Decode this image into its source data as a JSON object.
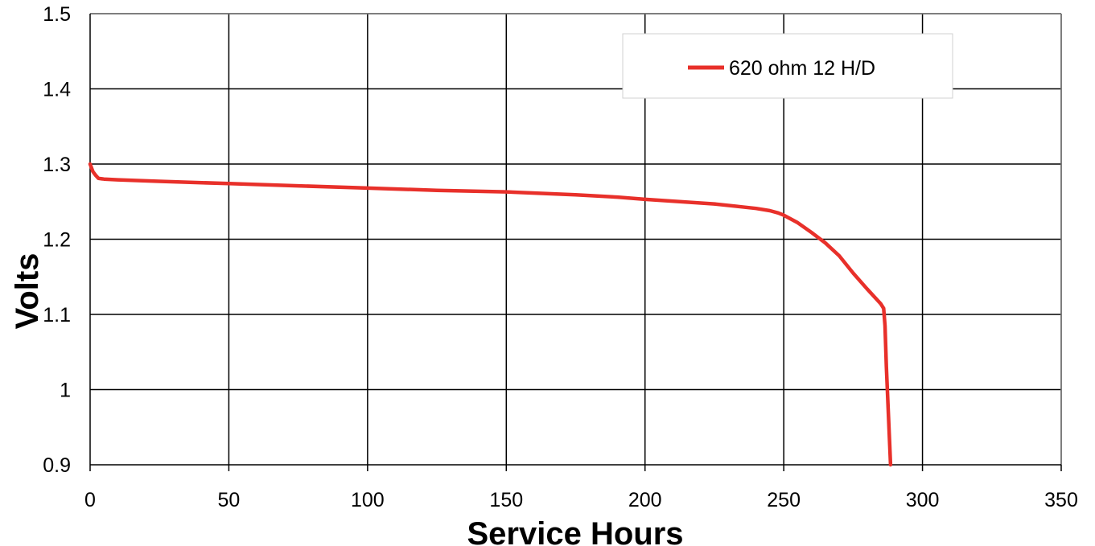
{
  "chart_data": {
    "type": "line",
    "title": "",
    "xlabel": "Service Hours",
    "ylabel": "Volts",
    "xlim": [
      0,
      350
    ],
    "ylim": [
      0.9,
      1.5
    ],
    "xticks": [
      0,
      50,
      100,
      150,
      200,
      250,
      300,
      350
    ],
    "yticks": [
      0.9,
      1,
      1.1,
      1.2,
      1.3,
      1.4,
      1.5
    ],
    "xtick_labels": [
      "0",
      "50",
      "100",
      "150",
      "200",
      "250",
      "300",
      "350"
    ],
    "ytick_labels": [
      "0.9",
      "1",
      "1.1",
      "1.2",
      "1.3",
      "1.4",
      "1.5"
    ],
    "grid": true,
    "legend_position": "top-right",
    "series": [
      {
        "name": "620 ohm 12 H/D",
        "color": "#e8302a",
        "x": [
          0,
          1,
          2,
          3,
          5,
          10,
          25,
          50,
          75,
          100,
          125,
          150,
          175,
          190,
          200,
          225,
          235,
          240,
          245,
          248,
          250,
          255,
          260,
          265,
          270,
          275,
          280,
          285,
          286,
          286.5,
          287,
          288.5
        ],
        "y": [
          1.3,
          1.29,
          1.285,
          1.281,
          1.28,
          1.279,
          1.277,
          1.274,
          1.271,
          1.268,
          1.265,
          1.263,
          1.259,
          1.256,
          1.253,
          1.247,
          1.243,
          1.241,
          1.238,
          1.235,
          1.232,
          1.222,
          1.209,
          1.195,
          1.178,
          1.155,
          1.134,
          1.114,
          1.108,
          1.085,
          1.03,
          0.9
        ]
      }
    ]
  }
}
